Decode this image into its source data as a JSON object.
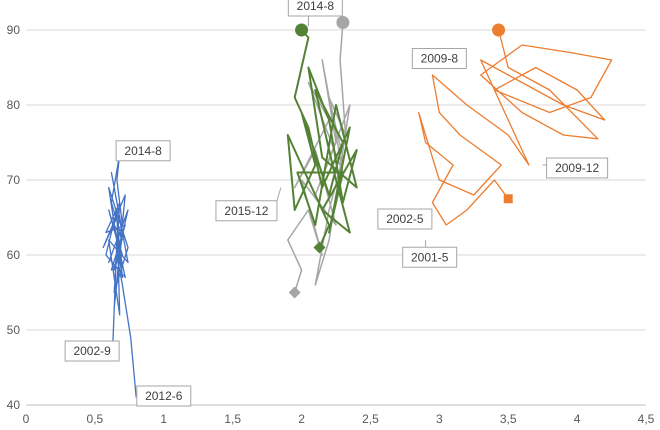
{
  "chart_data": {
    "type": "line",
    "title": "",
    "xlabel": "",
    "ylabel": "",
    "xlim": [
      0,
      4.5
    ],
    "ylim": [
      40,
      90
    ],
    "x_ticks": [
      "0",
      "0,5",
      "1",
      "1,5",
      "2",
      "2,5",
      "3",
      "3,5",
      "4",
      "4,5"
    ],
    "y_ticks": [
      "40",
      "50",
      "60",
      "70",
      "80",
      "90"
    ],
    "grid": "horizontal",
    "legend": "none",
    "series": [
      {
        "color": "#4472C4",
        "start_marker": "none",
        "end_marker": "none",
        "points": [
          [
            0.63,
            48
          ],
          [
            0.66,
            62
          ],
          [
            0.6,
            66
          ],
          [
            0.7,
            60
          ],
          [
            0.62,
            58
          ],
          [
            0.72,
            64
          ],
          [
            0.58,
            63
          ],
          [
            0.68,
            67
          ],
          [
            0.64,
            55
          ],
          [
            0.74,
            61
          ],
          [
            0.6,
            69
          ],
          [
            0.7,
            57
          ],
          [
            0.66,
            65
          ],
          [
            0.56,
            61
          ],
          [
            0.72,
            68
          ],
          [
            0.64,
            53
          ],
          [
            0.7,
            63
          ],
          [
            0.62,
            71
          ],
          [
            0.74,
            59
          ],
          [
            0.6,
            62
          ],
          [
            0.68,
            52
          ],
          [
            0.66,
            66
          ],
          [
            0.58,
            60
          ],
          [
            0.72,
            57
          ],
          [
            0.64,
            64
          ],
          [
            0.7,
            62
          ],
          [
            0.62,
            67
          ],
          [
            0.68,
            73.5
          ],
          [
            0.66,
            70
          ],
          [
            0.7,
            64
          ],
          [
            0.6,
            59
          ],
          [
            0.74,
            66
          ],
          [
            0.64,
            58
          ],
          [
            0.66,
            60
          ],
          [
            0.7,
            56
          ],
          [
            0.76,
            49
          ],
          [
            0.8,
            41
          ]
        ]
      },
      {
        "color": "#A6A6A6",
        "start_marker": "diamond",
        "end_marker": "circle",
        "points": [
          [
            1.95,
            55
          ],
          [
            2.0,
            58
          ],
          [
            1.9,
            62
          ],
          [
            2.05,
            66
          ],
          [
            2.15,
            60
          ],
          [
            2.0,
            70
          ],
          [
            2.25,
            64
          ],
          [
            2.1,
            74
          ],
          [
            1.95,
            69
          ],
          [
            2.2,
            78
          ],
          [
            2.05,
            83
          ],
          [
            2.3,
            71
          ],
          [
            2.15,
            86
          ],
          [
            2.25,
            75
          ],
          [
            2.1,
            68
          ],
          [
            2.35,
            80
          ],
          [
            2.2,
            62
          ],
          [
            2.1,
            56
          ],
          [
            2.2,
            66
          ],
          [
            2.3,
            73
          ],
          [
            2.2,
            81
          ],
          [
            2.32,
            76
          ],
          [
            2.28,
            86
          ],
          [
            2.3,
            91
          ]
        ]
      },
      {
        "color": "#548235",
        "start_marker": "diamond",
        "end_marker": "circle",
        "points": [
          [
            2.13,
            61
          ],
          [
            2.2,
            64
          ],
          [
            2.05,
            70
          ],
          [
            1.9,
            76
          ],
          [
            1.95,
            66
          ],
          [
            2.1,
            72
          ],
          [
            2.0,
            79
          ],
          [
            2.2,
            68
          ],
          [
            2.3,
            75
          ],
          [
            2.1,
            82
          ],
          [
            2.25,
            70
          ],
          [
            2.35,
            63
          ],
          [
            2.15,
            66
          ],
          [
            2.4,
            74
          ],
          [
            2.3,
            67
          ],
          [
            2.2,
            78
          ],
          [
            2.05,
            85
          ],
          [
            2.15,
            73
          ],
          [
            2.4,
            69
          ],
          [
            2.25,
            80
          ],
          [
            2.1,
            64
          ],
          [
            1.97,
            71
          ],
          [
            2.3,
            71
          ],
          [
            2.2,
            63
          ],
          [
            2.35,
            77
          ],
          [
            2.15,
            69
          ],
          [
            2.05,
            77
          ],
          [
            1.95,
            81
          ],
          [
            2.05,
            89
          ],
          [
            2.0,
            90
          ]
        ]
      },
      {
        "color": "#ED7D31",
        "start_marker": "square",
        "end_marker": "circle",
        "points": [
          [
            3.5,
            67.5
          ],
          [
            3.4,
            70
          ],
          [
            3.2,
            66
          ],
          [
            3.05,
            64
          ],
          [
            2.95,
            67
          ],
          [
            3.1,
            72
          ],
          [
            2.9,
            75
          ],
          [
            2.85,
            79
          ],
          [
            3.0,
            70
          ],
          [
            3.25,
            68
          ],
          [
            3.45,
            72
          ],
          [
            3.15,
            76
          ],
          [
            3.0,
            79
          ],
          [
            2.95,
            84
          ],
          [
            3.2,
            80
          ],
          [
            3.5,
            76
          ],
          [
            3.65,
            72
          ],
          [
            3.3,
            86
          ],
          [
            3.6,
            83
          ],
          [
            3.9,
            80
          ],
          [
            4.2,
            78
          ],
          [
            4.0,
            82
          ],
          [
            3.7,
            85
          ],
          [
            3.4,
            82
          ],
          [
            3.8,
            79
          ],
          [
            4.1,
            81
          ],
          [
            4.25,
            86
          ],
          [
            3.95,
            87
          ],
          [
            3.6,
            88
          ],
          [
            3.3,
            84
          ],
          [
            3.6,
            79
          ],
          [
            3.9,
            76
          ],
          [
            4.15,
            75.5
          ],
          [
            3.8,
            82
          ],
          [
            3.5,
            85
          ],
          [
            3.43,
            90
          ]
        ]
      }
    ],
    "annotations": [
      {
        "text": "2014-8",
        "label_x": 0.85,
        "label_y": 73.9,
        "anchor_x": 0.68,
        "anchor_y": 73.5
      },
      {
        "text": "2002-9",
        "label_x": 0.48,
        "label_y": 47.2,
        "anchor_x": 0.62,
        "anchor_y": 48.5
      },
      {
        "text": "2012-6",
        "label_x": 1.0,
        "label_y": 41.2,
        "anchor_x": 0.8,
        "anchor_y": 41.5
      },
      {
        "text": "2014-8",
        "label_x": 2.1,
        "label_y": 93.2,
        "anchor_x": 2.05,
        "anchor_y": 90.5
      },
      {
        "text": "2015-12",
        "label_x": 1.6,
        "label_y": 65.9,
        "anchor_x": 1.85,
        "anchor_y": 69
      },
      {
        "text": "2009-8",
        "label_x": 3.0,
        "label_y": 86.2,
        "anchor_x": 3.05,
        "anchor_y": 85
      },
      {
        "text": "2009-12",
        "label_x": 4.0,
        "label_y": 71.6,
        "anchor_x": 3.75,
        "anchor_y": 72
      },
      {
        "text": "2002-5",
        "label_x": 2.75,
        "label_y": 64.8,
        "anchor_x": 2.95,
        "anchor_y": 66
      },
      {
        "text": "2001-5",
        "label_x": 2.93,
        "label_y": 59.7,
        "anchor_x": 2.9,
        "anchor_y": 62
      }
    ]
  }
}
